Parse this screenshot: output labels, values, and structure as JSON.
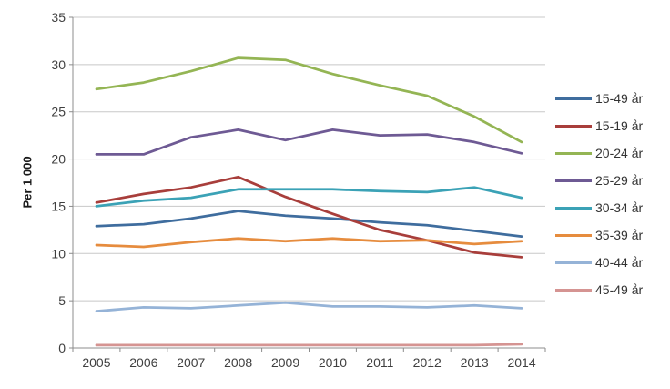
{
  "chart_data": {
    "type": "line",
    "title": "",
    "xlabel": "",
    "ylabel": "Per 1 000",
    "x": [
      "2005",
      "2006",
      "2007",
      "2008",
      "2009",
      "2010",
      "2011",
      "2012",
      "2013",
      "2014"
    ],
    "ylim": [
      0,
      35
    ],
    "ytick_step": 5,
    "grid": true,
    "legend_position": "right",
    "axis_color": "#8c8c8c",
    "gridline_color": "#c8c8c8",
    "series": [
      {
        "name": "15-49 år",
        "color": "#3f6d9e",
        "values": [
          12.9,
          13.1,
          13.7,
          14.5,
          14.0,
          13.7,
          13.3,
          13.0,
          12.4,
          11.8
        ]
      },
      {
        "name": "15-19 år",
        "color": "#a83e3b",
        "values": [
          15.4,
          16.3,
          17.0,
          18.1,
          16.0,
          14.2,
          12.5,
          11.4,
          10.1,
          9.6
        ]
      },
      {
        "name": "20-24 år",
        "color": "#94b554",
        "values": [
          27.4,
          28.1,
          29.3,
          30.7,
          30.5,
          29.0,
          27.8,
          26.7,
          24.5,
          21.8
        ]
      },
      {
        "name": "25-29 år",
        "color": "#6e5a94",
        "values": [
          20.5,
          20.5,
          22.3,
          23.1,
          22.0,
          23.1,
          22.5,
          22.6,
          21.8,
          20.6
        ]
      },
      {
        "name": "30-34 år",
        "color": "#3ba2b6",
        "values": [
          15.0,
          15.6,
          15.9,
          16.8,
          16.8,
          16.8,
          16.6,
          16.5,
          17.0,
          15.9
        ]
      },
      {
        "name": "35-39 år",
        "color": "#e68c3e",
        "values": [
          10.9,
          10.7,
          11.2,
          11.6,
          11.3,
          11.6,
          11.3,
          11.4,
          11.0,
          11.3
        ]
      },
      {
        "name": "40-44 år",
        "color": "#95b3d7",
        "values": [
          3.9,
          4.3,
          4.2,
          4.5,
          4.8,
          4.4,
          4.4,
          4.3,
          4.5,
          4.2
        ]
      },
      {
        "name": "45-49 år",
        "color": "#d59492",
        "values": [
          0.3,
          0.3,
          0.3,
          0.3,
          0.3,
          0.3,
          0.3,
          0.3,
          0.3,
          0.4
        ]
      }
    ]
  }
}
